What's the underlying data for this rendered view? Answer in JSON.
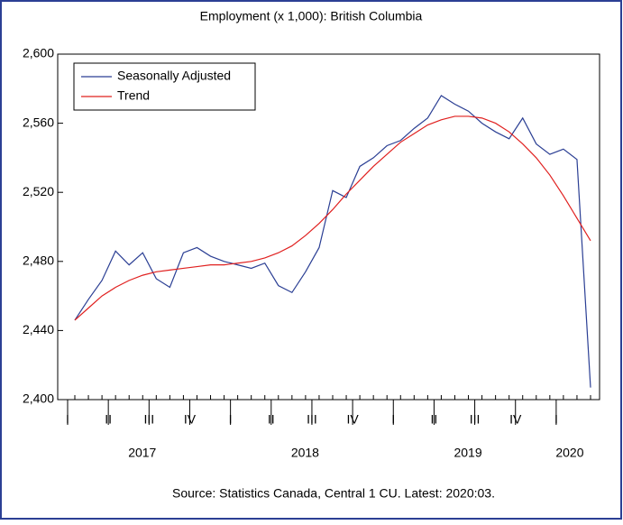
{
  "chart_data": {
    "type": "line",
    "title": "Employment (x 1,000): British Columbia",
    "source": "Source:  Statistics Canada, Central 1 CU. Latest: 2020:03.",
    "categories": [
      "I",
      null,
      null,
      "II",
      null,
      null,
      "III",
      null,
      null,
      "IV",
      null,
      null,
      "I",
      null,
      null,
      "II",
      null,
      null,
      "III",
      null,
      null,
      "IV",
      null,
      null,
      "I",
      null,
      null,
      "II",
      null,
      null,
      "III",
      null,
      null,
      "IV",
      null,
      null,
      "I",
      null,
      null
    ],
    "year_labels": [
      "2017",
      "2018",
      "2019",
      "2020"
    ],
    "series": [
      {
        "name": "Seasonally Adjusted",
        "color": "#2b3f94",
        "values": [
          2446,
          2458,
          2469,
          2486,
          2478,
          2485,
          2470,
          2465,
          2485,
          2488,
          2483,
          2480,
          2478,
          2476,
          2479,
          2466,
          2462,
          2474,
          2488,
          2521,
          2517,
          2535,
          2540,
          2547,
          2550,
          2557,
          2563,
          2576,
          2571,
          2567,
          2560,
          2555,
          2551,
          2563,
          2548,
          2542,
          2545,
          2539,
          2407
        ]
      },
      {
        "name": "Trend",
        "color": "#e0201f",
        "values": [
          2446,
          2453,
          2460,
          2465,
          2469,
          2472,
          2474,
          2475,
          2476,
          2477,
          2478,
          2478,
          2479,
          2480,
          2482,
          2485,
          2489,
          2495,
          2502,
          2510,
          2519,
          2527,
          2535,
          2542,
          2549,
          2554,
          2559,
          2562,
          2564,
          2564,
          2563,
          2560,
          2555,
          2548,
          2540,
          2530,
          2518,
          2505,
          2492
        ]
      }
    ],
    "ylim": [
      2400,
      2600
    ],
    "yticks": [
      {
        "value": 2400,
        "label": "2,400"
      },
      {
        "value": 2440,
        "label": "2,440"
      },
      {
        "value": 2480,
        "label": "2,480"
      },
      {
        "value": 2520,
        "label": "2,520"
      },
      {
        "value": 2560,
        "label": "2,560"
      },
      {
        "value": 2600,
        "label": "2,600"
      }
    ],
    "legend": "upper left"
  }
}
